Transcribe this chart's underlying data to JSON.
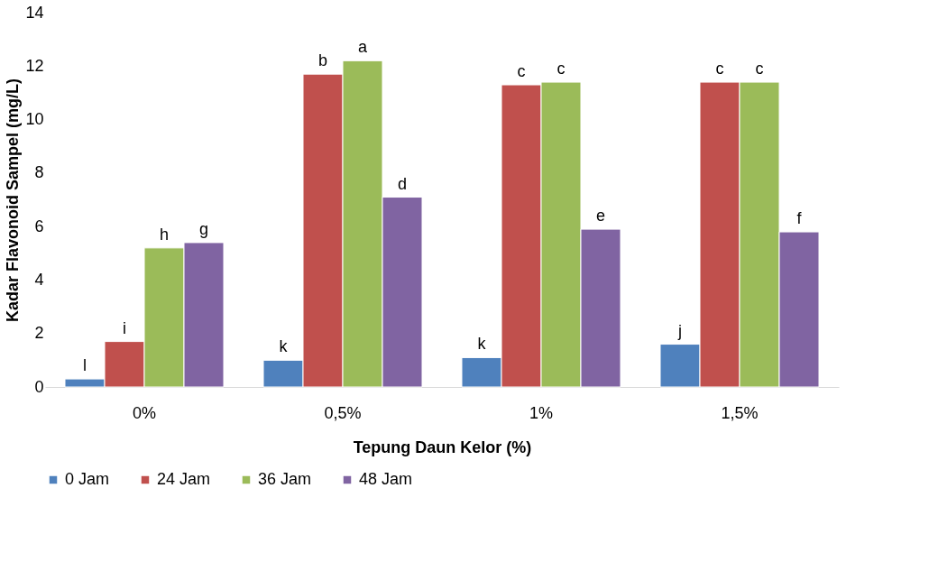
{
  "chart_data": {
    "type": "bar",
    "xlabel": "Tepung Daun Kelor (%)",
    "ylabel": "Kadar Flavonoid Sampel (mg/L)",
    "categories": [
      "0%",
      "0,5%",
      "1%",
      "1,5%"
    ],
    "series": [
      {
        "name": "0 Jam",
        "color": "#4f81bd",
        "values": [
          0.3,
          1.0,
          1.1,
          1.6
        ],
        "value_labels": [
          "l",
          "k",
          "k",
          "j"
        ]
      },
      {
        "name": "24 Jam",
        "color": "#c0504d",
        "values": [
          1.7,
          11.7,
          11.3,
          11.4
        ],
        "value_labels": [
          "i",
          "b",
          "c",
          "c"
        ]
      },
      {
        "name": "36 Jam",
        "color": "#9bbb59",
        "values": [
          5.2,
          12.2,
          11.4,
          11.4
        ],
        "value_labels": [
          "h",
          "a",
          "c",
          "c"
        ]
      },
      {
        "name": "48 Jam",
        "color": "#8064a2",
        "values": [
          5.4,
          7.1,
          5.9,
          5.8
        ],
        "value_labels": [
          "g",
          "d",
          "e",
          "f"
        ]
      }
    ],
    "ylim": [
      0,
      14
    ],
    "yticks": [
      0,
      2,
      4,
      6,
      8,
      10,
      12,
      14
    ],
    "grid": false,
    "legend": "bottom"
  }
}
